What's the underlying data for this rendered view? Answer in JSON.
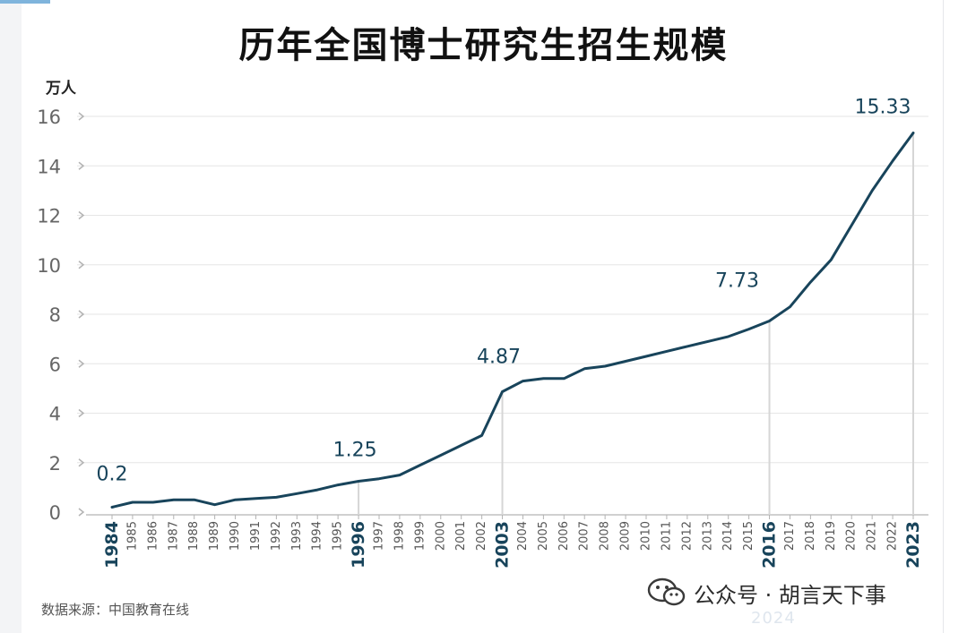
{
  "title": "历年全国博士研究生招生规模",
  "source": "数据来源：中国教育在线",
  "watermark": {
    "text": "公众号 · 胡言天下事",
    "ghost": "2024"
  },
  "colors": {
    "line": "#18445b",
    "grid": "#e6e6e6",
    "axis": "#b3b3b3",
    "text": "#666666",
    "highlight": "#18445b",
    "marker": "#d6d6d6"
  },
  "chart_data": {
    "type": "line",
    "title": "历年全国博士研究生招生规模",
    "ylabel": "万人",
    "xlabel": "",
    "ylim": [
      0,
      16
    ],
    "yticks": [
      0,
      2,
      4,
      6,
      8,
      10,
      12,
      14,
      16
    ],
    "grid": true,
    "x": [
      "1984",
      "1985",
      "1986",
      "1987",
      "1988",
      "1989",
      "1990",
      "1991",
      "1992",
      "1993",
      "1994",
      "1995",
      "1996",
      "1997",
      "1998",
      "1999",
      "2000",
      "2001",
      "2002",
      "2003",
      "2004",
      "2005",
      "2006",
      "2007",
      "2008",
      "2009",
      "2010",
      "2011",
      "2012",
      "2013",
      "2014",
      "2015",
      "2016",
      "2017",
      "2018",
      "2019",
      "2020",
      "2021",
      "2022",
      "2023"
    ],
    "values": [
      0.2,
      0.4,
      0.4,
      0.5,
      0.5,
      0.3,
      0.5,
      0.55,
      0.6,
      0.75,
      0.9,
      1.1,
      1.25,
      1.35,
      1.5,
      1.9,
      2.3,
      2.7,
      3.1,
      4.87,
      5.3,
      5.4,
      5.4,
      5.8,
      5.9,
      6.1,
      6.3,
      6.5,
      6.7,
      6.9,
      7.1,
      7.4,
      7.73,
      8.3,
      9.3,
      10.2,
      11.6,
      13.0,
      14.2,
      15.33
    ],
    "highlight_years": [
      "1984",
      "1996",
      "2003",
      "2016",
      "2023"
    ],
    "annotations": [
      {
        "year": "1984",
        "label": "0.2",
        "value": 0.2
      },
      {
        "year": "1996",
        "label": "1.25",
        "value": 1.25
      },
      {
        "year": "2003",
        "label": "4.87",
        "value": 4.87
      },
      {
        "year": "2016",
        "label": "7.73",
        "value": 7.73
      },
      {
        "year": "2023",
        "label": "15.33",
        "value": 15.33
      }
    ]
  }
}
